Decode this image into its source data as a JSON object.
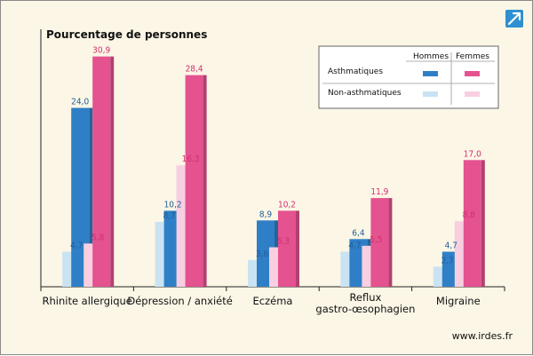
{
  "chart_data": {
    "type": "bar",
    "title": "Pourcentage de personnes",
    "categories": [
      "Rhinite allergique",
      "Dépression / anxiété",
      "Eczéma",
      "Reflux\ngastro-œsophagien",
      "Migraine"
    ],
    "series": [
      {
        "name": "Non-asthmatiques Hommes",
        "values": [
          4.7,
          8.7,
          3.6,
          4.7,
          2.7
        ],
        "labels": [
          "4,7",
          "8,7",
          "3,6",
          "4,7",
          "2,7"
        ],
        "color": "#c9e3f3"
      },
      {
        "name": "Asthmatiques Hommes",
        "values": [
          24.0,
          10.2,
          8.9,
          6.4,
          4.7
        ],
        "labels": [
          "24,0",
          "10,2",
          "8,9",
          "6,4",
          "4,7"
        ],
        "color": "#2f7fc6"
      },
      {
        "name": "Non-asthmatiques Femmes",
        "values": [
          5.8,
          16.3,
          5.3,
          5.5,
          8.8
        ],
        "labels": [
          "5,8",
          "16,3",
          "5,3",
          "5,5",
          "8,8"
        ],
        "color": "#f7cfe0"
      },
      {
        "name": "Asthmatiques Femmes",
        "values": [
          30.9,
          28.4,
          10.2,
          11.9,
          17.0
        ],
        "labels": [
          "30,9",
          "28,4",
          "10,2",
          "11,9",
          "17,0"
        ],
        "color": "#e4528f"
      }
    ],
    "ylim": [
      0,
      33
    ],
    "grid": false,
    "legend": {
      "placement": "top-right",
      "columns": [
        "Hommes",
        "Femmes"
      ],
      "rows": [
        "Asthmatiques",
        "Non-asthmatiques"
      ]
    }
  },
  "colors": {
    "background": "#fbf6e6",
    "male_asthma": "#2f7fc6",
    "male_non": "#c9e3f3",
    "female_asthma": "#e4528f",
    "female_non": "#f7cfe0",
    "male_label": "#1f5f99",
    "female_label": "#d1306f"
  },
  "source": "www.irdes.fr",
  "icons": {
    "corner": "expand-arrow-icon"
  }
}
